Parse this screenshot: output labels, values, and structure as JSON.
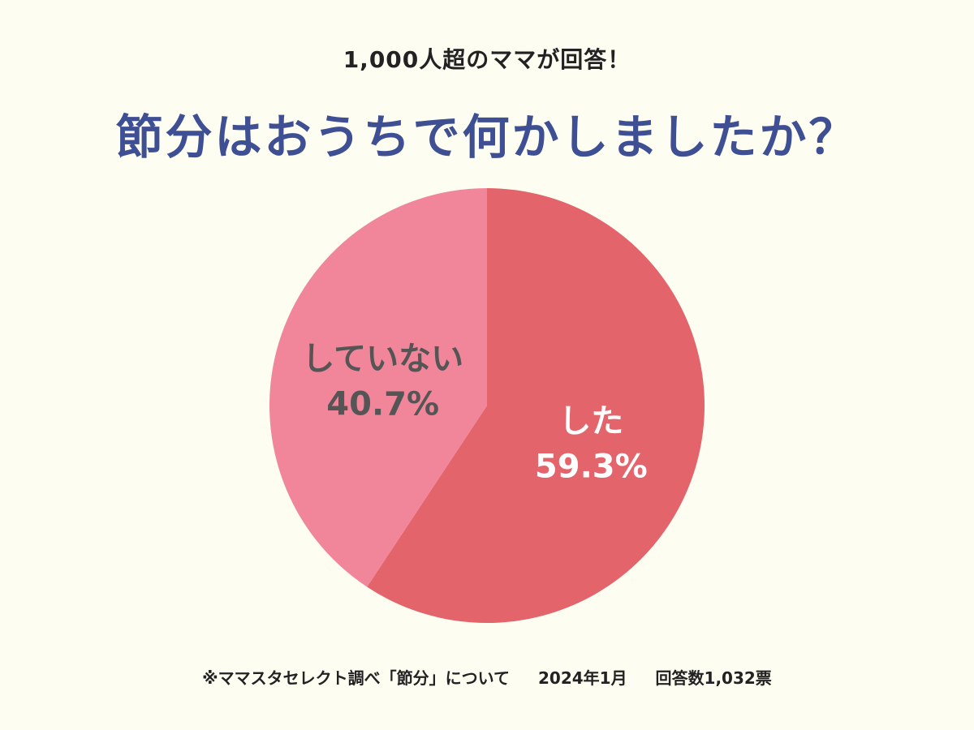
{
  "header": {
    "subtitle": "1,000人超のママが回答！",
    "title": "節分はおうちで何かしましたか？"
  },
  "chart_data": {
    "type": "pie",
    "title": "節分はおうちで何かしましたか？",
    "subtitle": "1,000人超のママが回答！",
    "slices": [
      {
        "label": "した",
        "value": 59.3,
        "display": "59.3%",
        "color": "#e3646a",
        "label_color": "#ffffff"
      },
      {
        "label": "していない",
        "value": 40.7,
        "display": "40.7%",
        "color": "#f1869b",
        "label_color": "#555555"
      }
    ],
    "start": "12 o'clock",
    "direction": "clockwise"
  },
  "footer": {
    "source": "※ママスタセレクト調べ「節分」について",
    "date": "2024年1月",
    "responses": "回答数1,032票"
  }
}
